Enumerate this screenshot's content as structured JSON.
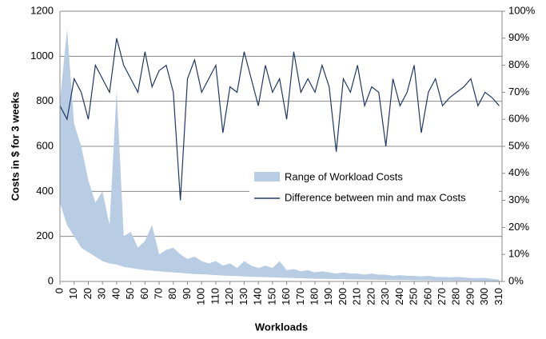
{
  "chart_data": {
    "type": "range-area-line",
    "y_label": "Costs in $ for 3 weeks",
    "x_label": "Workloads",
    "x": [
      0,
      5,
      10,
      15,
      20,
      25,
      30,
      35,
      40,
      45,
      50,
      55,
      60,
      65,
      70,
      75,
      80,
      85,
      90,
      95,
      100,
      105,
      110,
      115,
      120,
      125,
      130,
      135,
      140,
      145,
      150,
      155,
      160,
      165,
      170,
      175,
      180,
      185,
      190,
      195,
      200,
      205,
      210,
      215,
      220,
      225,
      230,
      235,
      240,
      245,
      250,
      255,
      260,
      265,
      270,
      275,
      280,
      285,
      290,
      295,
      300,
      305,
      310
    ],
    "series": [
      {
        "name": "Range of Workload Costs",
        "color": "#b8cce4",
        "values": [
          800,
          1120,
          700,
          600,
          450,
          350,
          400,
          250,
          850,
          200,
          220,
          150,
          180,
          250,
          120,
          140,
          150,
          120,
          100,
          110,
          90,
          80,
          90,
          70,
          80,
          60,
          90,
          70,
          60,
          70,
          60,
          90,
          50,
          55,
          45,
          50,
          40,
          45,
          40,
          35,
          40,
          35,
          35,
          30,
          35,
          30,
          30,
          25,
          28,
          25,
          25,
          22,
          25,
          20,
          20,
          18,
          20,
          18,
          15,
          15,
          15,
          12,
          8
        ],
        "low": [
          350,
          250,
          200,
          150,
          130,
          110,
          90,
          80,
          75,
          65,
          60,
          55,
          50,
          48,
          45,
          42,
          40,
          38,
          35,
          33,
          32,
          30,
          28,
          26,
          25,
          24,
          22,
          21,
          20,
          19,
          18,
          17,
          16,
          15,
          14,
          13,
          12,
          12,
          11,
          10,
          10,
          9,
          9,
          8,
          8,
          7,
          7,
          6,
          6,
          6,
          5,
          5,
          5,
          4,
          4,
          4,
          3,
          3,
          3,
          2,
          2,
          2,
          1
        ]
      },
      {
        "name": "Difference between min and max Costs",
        "color": "#1f3864",
        "axis": "y2",
        "values": [
          65,
          60,
          75,
          70,
          60,
          80,
          75,
          70,
          90,
          80,
          75,
          70,
          85,
          72,
          78,
          80,
          70,
          30,
          75,
          82,
          70,
          75,
          80,
          55,
          72,
          70,
          85,
          75,
          65,
          80,
          70,
          75,
          60,
          85,
          70,
          75,
          70,
          80,
          72,
          48,
          75,
          70,
          80,
          65,
          72,
          70,
          50,
          75,
          65,
          70,
          80,
          55,
          70,
          75,
          65,
          68,
          70,
          72,
          75,
          65,
          70,
          68,
          65
        ]
      }
    ],
    "xlim": [
      0,
      312
    ],
    "xticks": [
      0,
      10,
      20,
      30,
      40,
      50,
      60,
      70,
      80,
      90,
      100,
      110,
      120,
      130,
      140,
      150,
      160,
      170,
      180,
      190,
      200,
      210,
      220,
      230,
      240,
      250,
      260,
      270,
      280,
      290,
      300,
      310
    ],
    "ylim": [
      0,
      1200
    ],
    "yticks": [
      0,
      200,
      400,
      600,
      800,
      1000,
      1200
    ],
    "y2lim": [
      0,
      100
    ],
    "y2ticks": [
      {
        "value": 0,
        "label": "0%"
      },
      {
        "value": 10,
        "label": "10%"
      },
      {
        "value": 20,
        "label": "20%"
      },
      {
        "value": 30,
        "label": "30%"
      },
      {
        "value": 40,
        "label": "40%"
      },
      {
        "value": 50,
        "label": "50%"
      },
      {
        "value": 60,
        "label": "60%"
      },
      {
        "value": 70,
        "label": "70%"
      },
      {
        "value": 80,
        "label": "80%"
      },
      {
        "value": 90,
        "label": "90%"
      },
      {
        "value": 100,
        "label": "100%"
      }
    ],
    "grid": true,
    "legend": "center-right"
  }
}
